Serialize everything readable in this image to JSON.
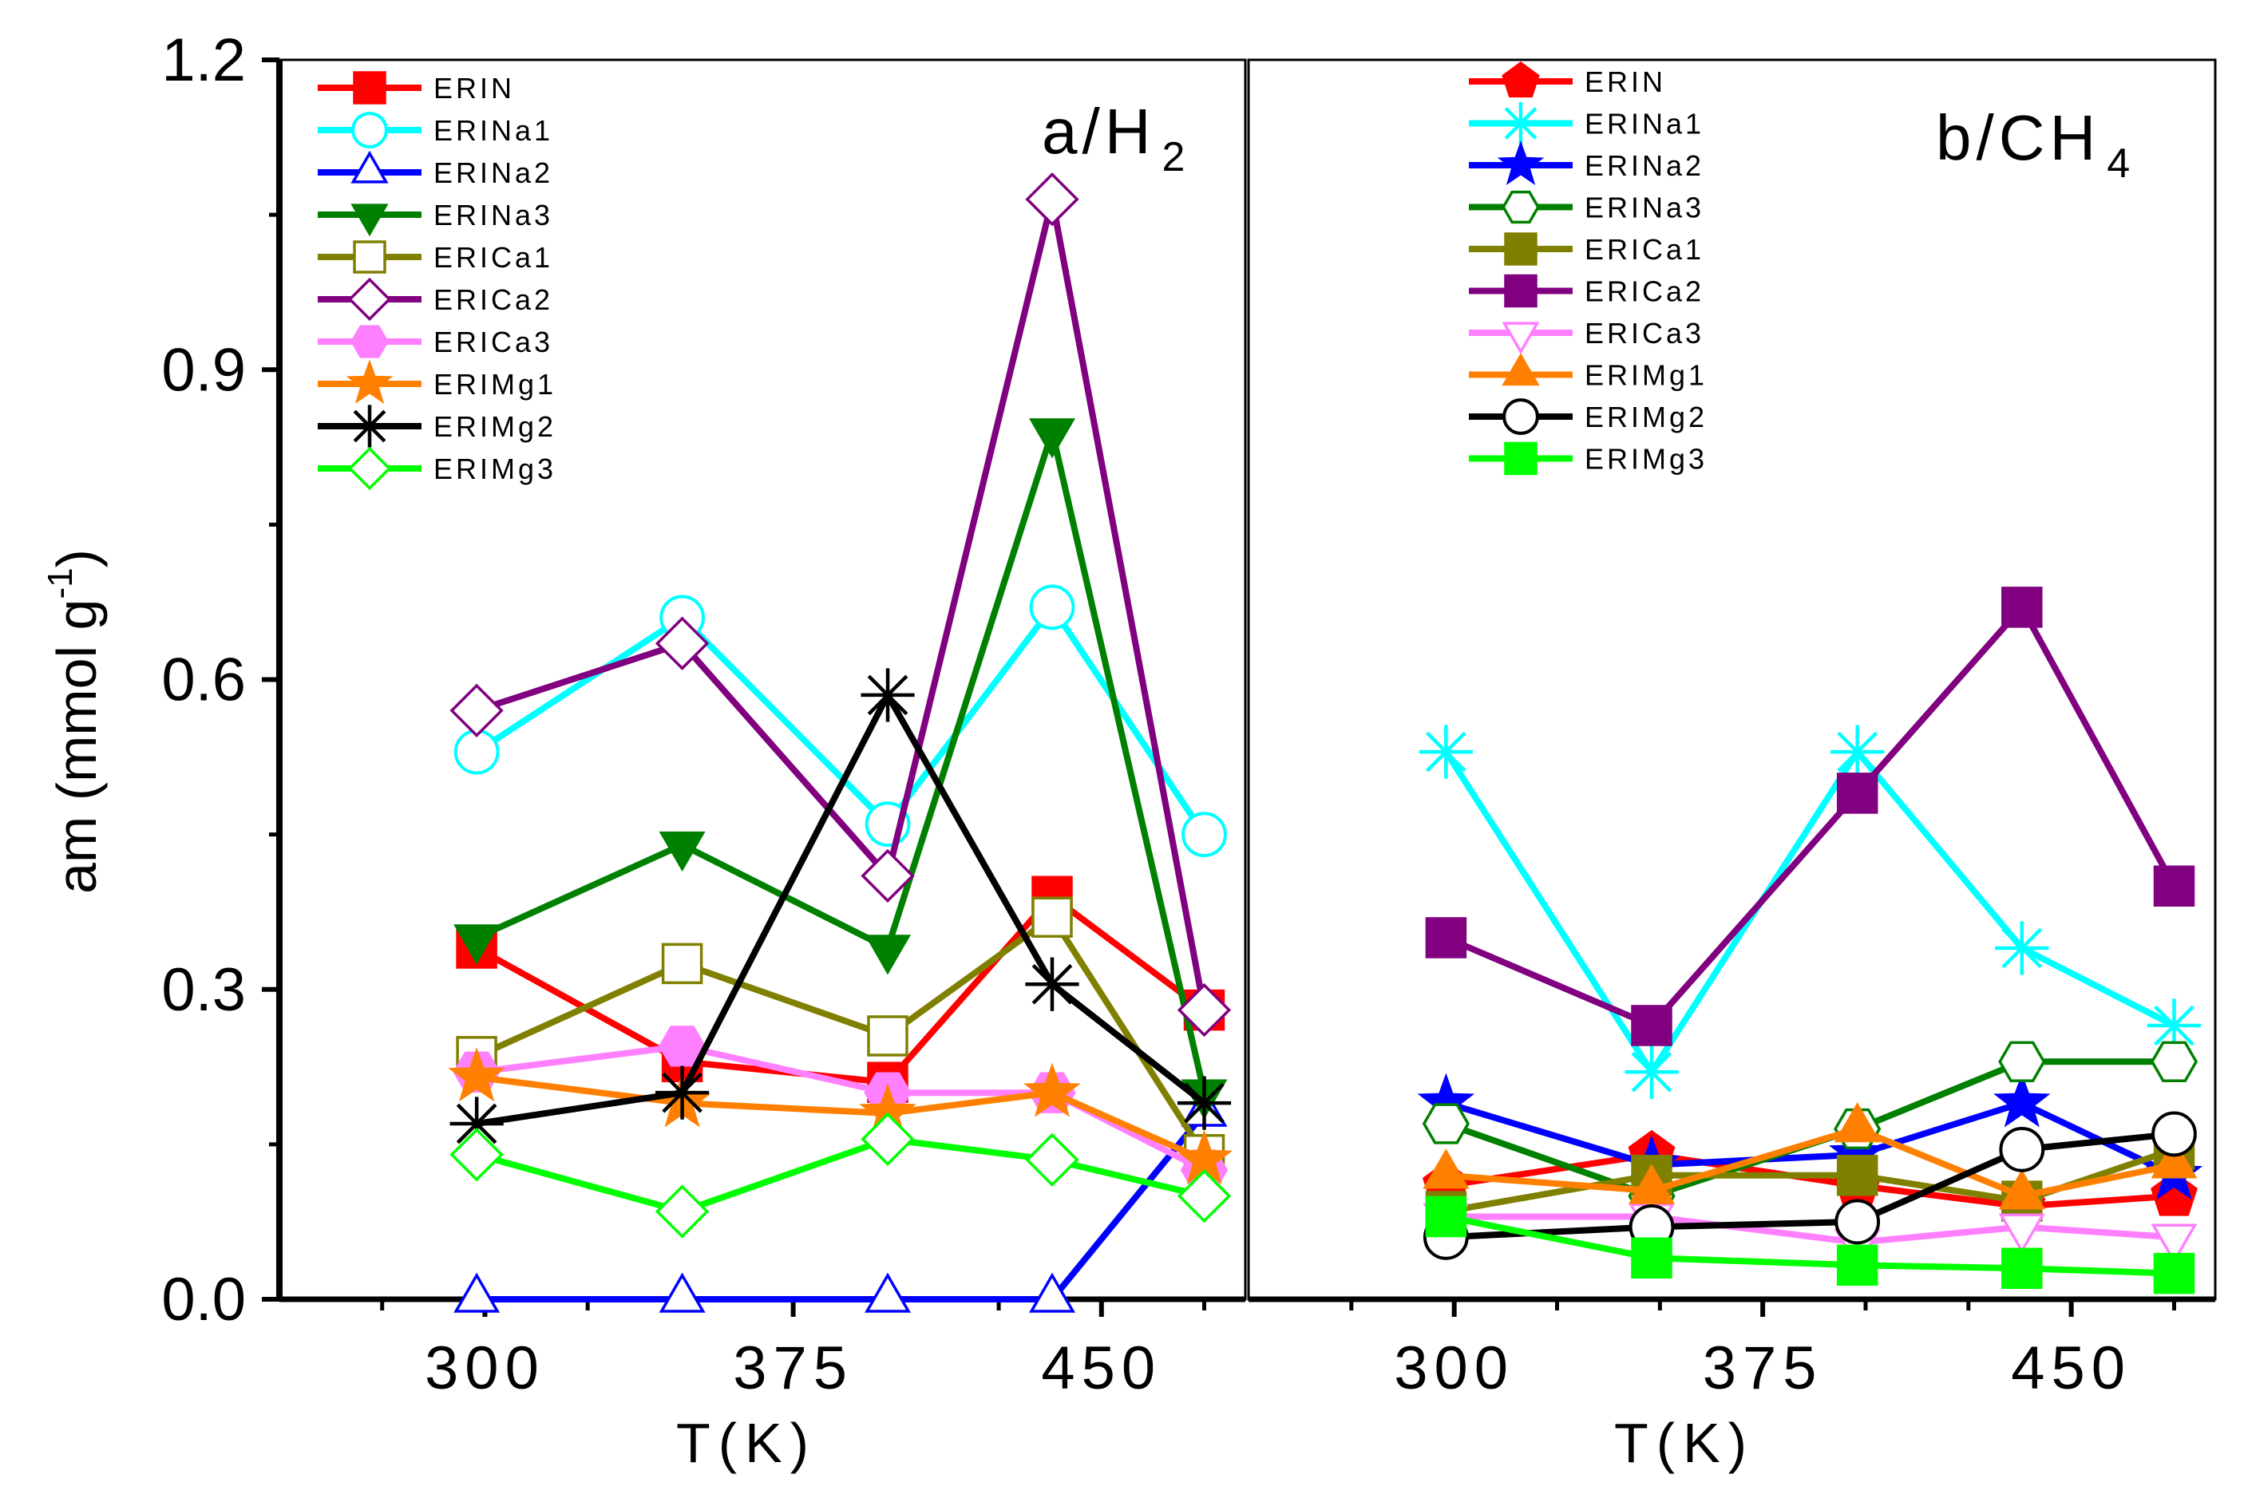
{
  "chart_data": [
    {
      "type": "line",
      "panel": "a",
      "label_main": "a/H",
      "label_sub": "2",
      "xlabel": "T(K)",
      "ylabel": "am (mmol g",
      "ylabel_sup": "-1",
      "ylabel_close": ")",
      "xlim": [
        250,
        485
      ],
      "ylim": [
        0,
        1.2
      ],
      "xticks": [
        300,
        375,
        450
      ],
      "yticks": [
        "0.0",
        "0.3",
        "0.6",
        "0.9",
        "1.2"
      ],
      "ytick_values": [
        0,
        0.3,
        0.6,
        0.9,
        1.2
      ],
      "x": [
        298,
        348,
        398,
        438,
        475
      ],
      "series": [
        {
          "name": "ERIN",
          "color": "#ff0000",
          "marker": "square",
          "filled": true,
          "values": [
            0.34,
            0.23,
            0.21,
            0.39,
            0.28
          ]
        },
        {
          "name": "ERINa1",
          "color": "#00ffff",
          "marker": "circle",
          "filled": false,
          "values": [
            0.53,
            0.66,
            0.46,
            0.67,
            0.45
          ]
        },
        {
          "name": "ERINa2",
          "color": "#0000ff",
          "marker": "triangle-up",
          "filled": false,
          "values": [
            0.0,
            0.0,
            0.0,
            0.0,
            0.18
          ]
        },
        {
          "name": "ERINa3",
          "color": "#008000",
          "marker": "triangle-down",
          "filled": true,
          "values": [
            0.35,
            0.44,
            0.34,
            0.84,
            0.2
          ]
        },
        {
          "name": "ERICa1",
          "color": "#808000",
          "marker": "square",
          "filled": false,
          "values": [
            0.235,
            0.325,
            0.255,
            0.37,
            0.14
          ]
        },
        {
          "name": "ERICa2",
          "color": "#800080",
          "marker": "diamond",
          "filled": false,
          "values": [
            0.57,
            0.635,
            0.41,
            1.065,
            0.28
          ]
        },
        {
          "name": "ERICa3",
          "color": "#ff80ff",
          "marker": "hexagon",
          "filled": true,
          "values": [
            0.22,
            0.245,
            0.2,
            0.2,
            0.125
          ]
        },
        {
          "name": "ERIMg1",
          "color": "#ff8000",
          "marker": "star",
          "filled": true,
          "values": [
            0.215,
            0.19,
            0.18,
            0.2,
            0.135
          ]
        },
        {
          "name": "ERIMg2",
          "color": "#000000",
          "marker": "asterisk",
          "filled": false,
          "values": [
            0.17,
            0.2,
            0.585,
            0.305,
            0.19
          ]
        },
        {
          "name": "ERIMg3",
          "color": "#00ff00",
          "marker": "diamond",
          "filled": false,
          "values": [
            0.14,
            0.085,
            0.155,
            0.135,
            0.1
          ]
        }
      ]
    },
    {
      "type": "line",
      "panel": "b",
      "label_main": "b/CH",
      "label_sub": "4",
      "xlabel": "T(K)",
      "xlim": [
        250,
        485
      ],
      "ylim": [
        0,
        1.2
      ],
      "xticks": [
        300,
        375,
        450
      ],
      "x": [
        298,
        348,
        398,
        438,
        475
      ],
      "series": [
        {
          "name": "ERIN",
          "color": "#ff0000",
          "marker": "pentagon",
          "filled": true,
          "values": [
            0.11,
            0.14,
            0.11,
            0.09,
            0.1
          ]
        },
        {
          "name": "ERINa1",
          "color": "#00ffff",
          "marker": "asterisk",
          "filled": false,
          "values": [
            0.53,
            0.22,
            0.53,
            0.34,
            0.265
          ]
        },
        {
          "name": "ERINa2",
          "color": "#0000ff",
          "marker": "star",
          "filled": true,
          "values": [
            0.19,
            0.13,
            0.14,
            0.19,
            0.12
          ]
        },
        {
          "name": "ERINa3",
          "color": "#008000",
          "marker": "hexagon",
          "filled": false,
          "values": [
            0.17,
            0.1,
            0.165,
            0.23,
            0.23
          ]
        },
        {
          "name": "ERICa1",
          "color": "#808000",
          "marker": "square",
          "filled": true,
          "values": [
            0.085,
            0.12,
            0.12,
            0.095,
            0.145
          ]
        },
        {
          "name": "ERICa2",
          "color": "#800080",
          "marker": "square",
          "filled": true,
          "values": [
            0.35,
            0.265,
            0.49,
            0.67,
            0.4
          ]
        },
        {
          "name": "ERICa3",
          "color": "#ff80ff",
          "marker": "triangle-down",
          "filled": false,
          "values": [
            0.08,
            0.08,
            0.055,
            0.07,
            0.06
          ]
        },
        {
          "name": "ERIMg1",
          "color": "#ff8000",
          "marker": "triangle-up",
          "filled": true,
          "values": [
            0.12,
            0.105,
            0.165,
            0.1,
            0.13
          ]
        },
        {
          "name": "ERIMg2",
          "color": "#000000",
          "marker": "circle",
          "filled": false,
          "values": [
            0.06,
            0.07,
            0.075,
            0.145,
            0.16
          ]
        },
        {
          "name": "ERIMg3",
          "color": "#00ff00",
          "marker": "square",
          "filled": true,
          "values": [
            0.08,
            0.04,
            0.033,
            0.03,
            0.025
          ]
        }
      ]
    }
  ]
}
